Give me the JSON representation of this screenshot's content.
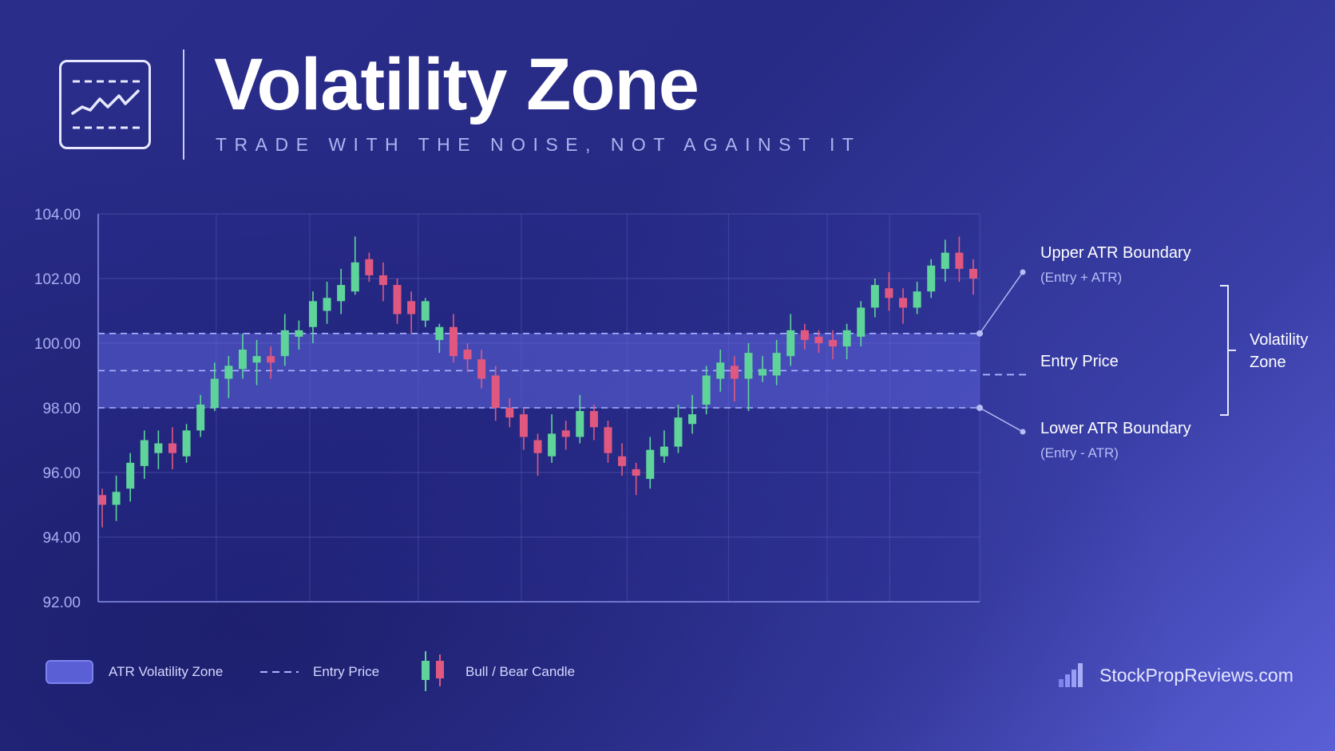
{
  "header": {
    "title": "Volatility Zone",
    "subtitle": "TRADE WITH THE NOISE, NOT AGAINST IT"
  },
  "chart_data": {
    "type": "candlestick",
    "ylim": [
      92,
      104
    ],
    "yticks": [
      "104.00",
      "102.00",
      "100.00",
      "98.00",
      "96.00",
      "94.00",
      "92.00"
    ],
    "grid": true,
    "zone": {
      "upper": 100.3,
      "entry": 99.15,
      "lower": 98.0
    },
    "candles": [
      [
        95.3,
        95.0,
        95.5,
        94.3
      ],
      [
        95.0,
        95.4,
        95.9,
        94.5
      ],
      [
        95.5,
        96.3,
        96.6,
        95.1
      ],
      [
        96.2,
        97.0,
        97.3,
        95.8
      ],
      [
        96.6,
        96.9,
        97.3,
        96.1
      ],
      [
        96.9,
        96.6,
        97.4,
        96.1
      ],
      [
        96.5,
        97.3,
        97.5,
        96.3
      ],
      [
        97.3,
        98.1,
        98.4,
        97.1
      ],
      [
        98.0,
        98.9,
        99.4,
        97.9
      ],
      [
        98.9,
        99.3,
        99.6,
        98.3
      ],
      [
        99.2,
        99.8,
        100.3,
        98.9
      ],
      [
        99.4,
        99.6,
        100.1,
        98.7
      ],
      [
        99.6,
        99.4,
        99.9,
        98.9
      ],
      [
        99.6,
        100.4,
        100.9,
        99.3
      ],
      [
        100.2,
        100.4,
        100.7,
        99.8
      ],
      [
        100.5,
        101.3,
        101.6,
        100.0
      ],
      [
        101.0,
        101.4,
        101.9,
        100.6
      ],
      [
        101.3,
        101.8,
        102.3,
        100.9
      ],
      [
        101.6,
        102.5,
        103.3,
        101.5
      ],
      [
        102.6,
        102.1,
        102.8,
        101.9
      ],
      [
        102.1,
        101.8,
        102.5,
        101.3
      ],
      [
        101.8,
        100.9,
        102.0,
        100.6
      ],
      [
        101.3,
        100.9,
        101.6,
        100.3
      ],
      [
        100.7,
        101.3,
        101.4,
        100.5
      ],
      [
        100.1,
        100.5,
        100.6,
        99.7
      ],
      [
        100.5,
        99.6,
        100.9,
        99.4
      ],
      [
        99.8,
        99.5,
        100.0,
        99.1
      ],
      [
        99.5,
        98.9,
        99.8,
        98.6
      ],
      [
        99.0,
        98.0,
        99.3,
        97.6
      ],
      [
        98.0,
        97.7,
        98.3,
        97.4
      ],
      [
        97.8,
        97.1,
        98.0,
        96.7
      ],
      [
        97.0,
        96.6,
        97.2,
        95.9
      ],
      [
        96.5,
        97.2,
        97.8,
        96.3
      ],
      [
        97.3,
        97.1,
        97.6,
        96.7
      ],
      [
        97.1,
        97.9,
        98.4,
        96.9
      ],
      [
        97.9,
        97.4,
        98.1,
        97.0
      ],
      [
        97.4,
        96.6,
        97.6,
        96.3
      ],
      [
        96.5,
        96.2,
        96.9,
        95.9
      ],
      [
        96.1,
        95.9,
        96.3,
        95.3
      ],
      [
        95.8,
        96.7,
        97.1,
        95.5
      ],
      [
        96.5,
        96.8,
        97.3,
        96.3
      ],
      [
        96.8,
        97.7,
        98.1,
        96.6
      ],
      [
        97.5,
        97.8,
        98.4,
        97.2
      ],
      [
        98.1,
        99.0,
        99.3,
        97.8
      ],
      [
        98.9,
        99.4,
        99.8,
        98.5
      ],
      [
        99.3,
        98.9,
        99.6,
        98.2
      ],
      [
        98.9,
        99.7,
        100.0,
        97.9
      ],
      [
        99.0,
        99.2,
        99.6,
        98.8
      ],
      [
        99.0,
        99.7,
        100.1,
        98.7
      ],
      [
        99.6,
        100.4,
        100.9,
        99.3
      ],
      [
        100.4,
        100.1,
        100.6,
        99.8
      ],
      [
        100.2,
        100.0,
        100.4,
        99.7
      ],
      [
        100.1,
        99.9,
        100.4,
        99.5
      ],
      [
        99.9,
        100.4,
        100.6,
        99.5
      ],
      [
        100.2,
        101.1,
        101.3,
        99.9
      ],
      [
        101.1,
        101.8,
        102.0,
        100.8
      ],
      [
        101.7,
        101.4,
        102.2,
        101.0
      ],
      [
        101.4,
        101.1,
        101.7,
        100.6
      ],
      [
        101.1,
        101.6,
        101.9,
        100.9
      ],
      [
        101.6,
        102.4,
        102.6,
        101.4
      ],
      [
        102.3,
        102.8,
        103.2,
        101.9
      ],
      [
        102.8,
        102.3,
        103.3,
        101.9
      ],
      [
        102.3,
        102.0,
        102.6,
        101.5
      ]
    ]
  },
  "annotations": {
    "upper_title": "Upper ATR Boundary",
    "upper_sub": "(Entry + ATR)",
    "entry_label": "Entry Price",
    "lower_title": "Lower ATR Boundary",
    "lower_sub": "(Entry - ATR)",
    "zone_line1": "Volatility",
    "zone_line2": "Zone"
  },
  "legend": {
    "zone": "ATR Volatility Zone",
    "entry": "Entry Price",
    "candle": "Bull / Bear Candle"
  },
  "brand": "StockPropReviews.com",
  "colors": {
    "bull": "#5fd49a",
    "bear": "#e0587f",
    "zone": "#5a5fd6",
    "entry_line": "#aab4ff"
  },
  "icons": {
    "logo": "chart-line-icon",
    "brand": "bar-chart-icon"
  }
}
